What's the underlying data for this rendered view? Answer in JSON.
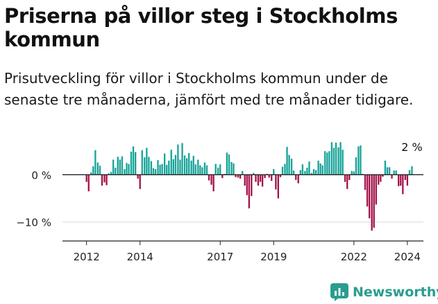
{
  "title": "Priserna på villor steg i Stockholms kommun",
  "subtitle": "Prisutveckling för villor i Stockholms kommun under de senaste tre månaderna, jämfört med tre månader tidigare.",
  "brand": {
    "name": "Newsworthy",
    "icon": "bar-chart-icon",
    "color": "#2a9d8f"
  },
  "colors": {
    "positive": "#17a398",
    "negative": "#a4124a",
    "grid": "#d9d9d9",
    "axis": "#222222"
  },
  "chart_data": {
    "type": "bar",
    "title": "Priserna på villor steg i Stockholms kommun",
    "subtitle": "Prisutveckling för villor i Stockholms kommun under de senaste tre månaderna, jämfört med tre månader tidigare.",
    "xlabel": "",
    "ylabel": "",
    "unit": "%",
    "ylim": [
      -14,
      6.5
    ],
    "xlim": [
      2011.1,
      2024.6
    ],
    "y_ticks": [
      {
        "value": 0,
        "label": "0 %"
      },
      {
        "value": -10,
        "label": "−10 %"
      }
    ],
    "x_ticks": [
      {
        "value": 2012,
        "label": "2012"
      },
      {
        "value": 2014,
        "label": "2014"
      },
      {
        "value": 2017,
        "label": "2017"
      },
      {
        "value": 2019,
        "label": "2019"
      },
      {
        "value": 2022,
        "label": "2022"
      },
      {
        "value": 2024,
        "label": "2024"
      }
    ],
    "grid": true,
    "last_value_label": "2 %",
    "x": [
      2012.0,
      2012.08,
      2012.17,
      2012.25,
      2012.33,
      2012.42,
      2012.5,
      2012.58,
      2012.67,
      2012.75,
      2012.83,
      2012.92,
      2013.0,
      2013.08,
      2013.17,
      2013.25,
      2013.33,
      2013.42,
      2013.5,
      2013.58,
      2013.67,
      2013.75,
      2013.83,
      2013.92,
      2014.0,
      2014.08,
      2014.17,
      2014.25,
      2014.33,
      2014.42,
      2014.5,
      2014.58,
      2014.67,
      2014.75,
      2014.83,
      2014.92,
      2015.0,
      2015.08,
      2015.17,
      2015.25,
      2015.33,
      2015.42,
      2015.5,
      2015.58,
      2015.67,
      2015.75,
      2015.83,
      2015.92,
      2016.0,
      2016.08,
      2016.17,
      2016.25,
      2016.33,
      2016.42,
      2016.5,
      2016.58,
      2016.67,
      2016.75,
      2016.83,
      2016.92,
      2017.0,
      2017.08,
      2017.17,
      2017.25,
      2017.33,
      2017.42,
      2017.5,
      2017.58,
      2017.67,
      2017.75,
      2017.83,
      2017.92,
      2018.0,
      2018.08,
      2018.17,
      2018.25,
      2018.33,
      2018.42,
      2018.5,
      2018.58,
      2018.67,
      2018.75,
      2018.83,
      2018.92,
      2019.0,
      2019.08,
      2019.17,
      2019.25,
      2019.33,
      2019.42,
      2019.5,
      2019.58,
      2019.67,
      2019.75,
      2019.83,
      2019.92,
      2020.0,
      2020.08,
      2020.17,
      2020.25,
      2020.33,
      2020.42,
      2020.5,
      2020.58,
      2020.67,
      2020.75,
      2020.83,
      2020.92,
      2021.0,
      2021.08,
      2021.17,
      2021.25,
      2021.33,
      2021.42,
      2021.5,
      2021.58,
      2021.67,
      2021.75,
      2021.83,
      2021.92,
      2022.0,
      2022.08,
      2022.17,
      2022.25,
      2022.33,
      2022.42,
      2022.5,
      2022.58,
      2022.67,
      2022.75,
      2022.83,
      2022.92,
      2023.0,
      2023.08,
      2023.17,
      2023.25,
      2023.33,
      2023.42,
      2023.5,
      2023.58,
      2023.67,
      2023.75,
      2023.83,
      2023.92,
      2024.0,
      2024.08,
      2024.17
    ],
    "values": [
      -1.5,
      -3.5,
      0.5,
      1.8,
      5.2,
      2.6,
      1.9,
      -2.3,
      -1.6,
      -2.2,
      0.3,
      0.6,
      3.2,
      1.5,
      3.8,
      3.2,
      3.9,
      1.2,
      2.5,
      2.3,
      4.9,
      6.0,
      4.8,
      -0.8,
      -3.0,
      5.2,
      3.7,
      5.7,
      3.8,
      2.9,
      1.4,
      1.2,
      3.1,
      2.1,
      2.3,
      4.5,
      2.1,
      3.0,
      5.3,
      3.3,
      4.2,
      6.4,
      3.2,
      6.7,
      4.1,
      3.5,
      4.6,
      3.0,
      4.0,
      2.2,
      3.2,
      2.0,
      1.6,
      2.6,
      2.0,
      -1.2,
      -2.1,
      -3.5,
      2.3,
      1.5,
      2.2,
      -0.7,
      0.2,
      4.7,
      4.3,
      2.7,
      2.4,
      -0.5,
      -0.6,
      -0.8,
      0.8,
      -2.3,
      -4.3,
      -7.1,
      -4.5,
      0.4,
      -1.5,
      -2.3,
      -1.5,
      -2.5,
      -0.7,
      0.2,
      -0.6,
      -1.3,
      1.2,
      -3.1,
      -5.0,
      -0.5,
      1.7,
      2.3,
      5.9,
      4.2,
      3.4,
      0.9,
      -1.1,
      -1.8,
      1.0,
      2.2,
      0.8,
      1.5,
      2.8,
      0.4,
      1.2,
      1.0,
      3.0,
      2.4,
      2.0,
      5.0,
      4.7,
      5.0,
      6.9,
      5.7,
      6.8,
      5.8,
      6.9,
      5.3,
      -1.5,
      -3.0,
      -1.1,
      0.8,
      0.7,
      3.7,
      6.0,
      6.2,
      0.2,
      -3.2,
      -6.7,
      -9.2,
      -11.8,
      -11.2,
      -6.3,
      -2.1,
      -1.5,
      -0.4,
      3.0,
      1.6,
      1.6,
      -0.8,
      0.9,
      0.9,
      -2.4,
      -2.3,
      -4.1,
      -1.1,
      -2.3,
      1.0,
      1.8
    ]
  }
}
